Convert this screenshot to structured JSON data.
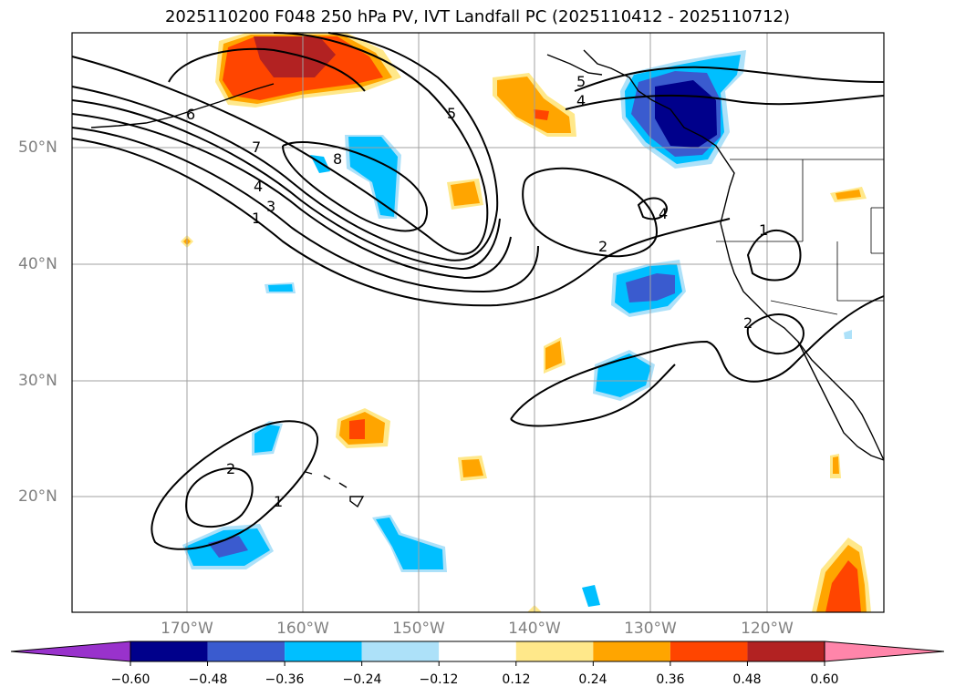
{
  "title": "2025110200 F048 250 hPa PV, IVT Landfall PC (2025110412 - 2025110712)",
  "axes": {
    "lat_labels": [
      "50°N",
      "40°N",
      "30°N",
      "20°N"
    ],
    "lon_labels": [
      "170°W",
      "160°W",
      "150°W",
      "140°W",
      "130°W",
      "120°W"
    ]
  },
  "contour_labels": [
    "6",
    "7",
    "8",
    "5",
    "5",
    "4",
    "4",
    "3",
    "1",
    "2",
    "4",
    "1",
    "2",
    "2",
    "1"
  ],
  "colorbar": {
    "ticks": [
      "−0.60",
      "−0.48",
      "−0.36",
      "−0.24",
      "−0.12",
      "0.12",
      "0.24",
      "0.36",
      "0.48",
      "0.60"
    ],
    "colors": [
      "#9932CC",
      "#00008B",
      "#3A5BCF",
      "#00BFFF",
      "#ADE1F9",
      "#FFFFFF",
      "#FFE88A",
      "#FFA500",
      "#FF4500",
      "#B22222",
      "#FF85AA"
    ]
  }
}
